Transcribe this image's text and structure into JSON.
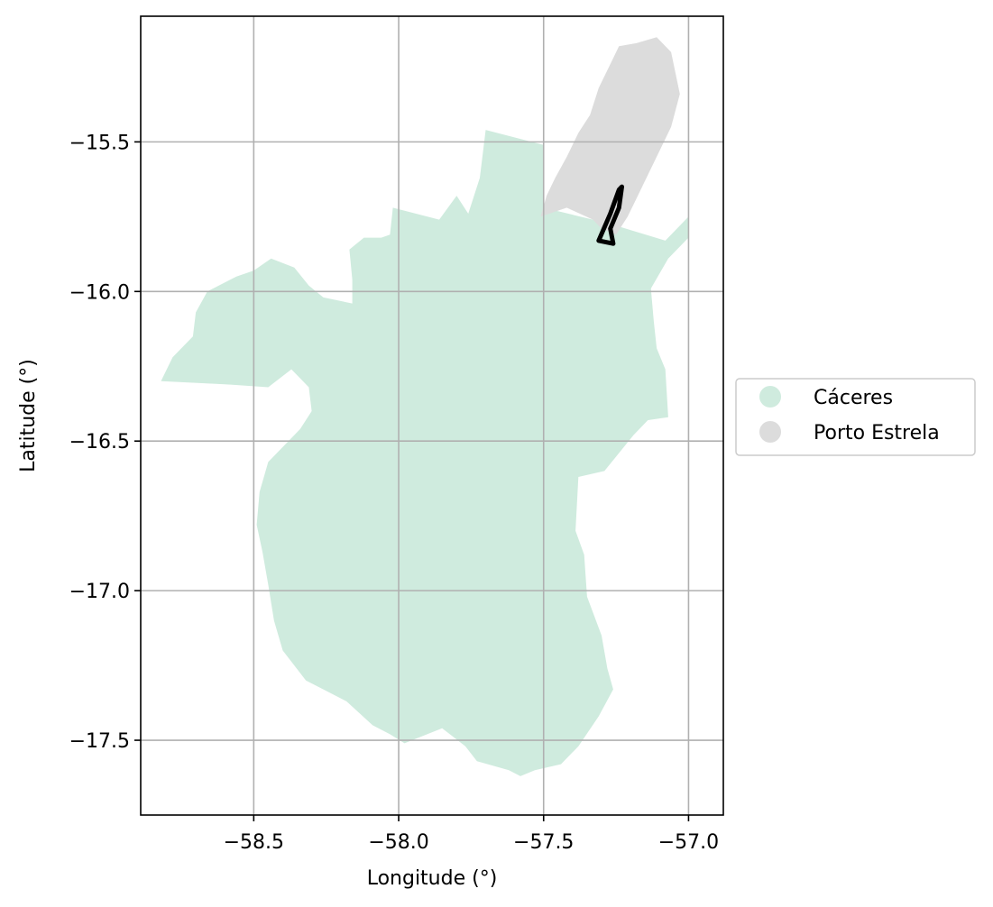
{
  "chart_data": {
    "type": "map",
    "xlabel": "Longitude (°)",
    "ylabel": "Latitude (°)",
    "xlim": [
      -58.89,
      -56.88
    ],
    "ylim": [
      -17.75,
      -15.08
    ],
    "x_ticks": [
      -58.5,
      -58.0,
      -57.5,
      -57.0
    ],
    "x_tick_labels": [
      "−58.5",
      "−58.0",
      "−57.5",
      "−57.0"
    ],
    "y_ticks": [
      -15.5,
      -16.0,
      -16.5,
      -17.0,
      -17.5
    ],
    "y_tick_labels": [
      "−15.5",
      "−16.0",
      "−16.5",
      "−17.0",
      "−17.5"
    ],
    "grid": true,
    "legend_position": "center-right, outside plot",
    "legend": [
      {
        "label": "Cáceres",
        "color": "#cfebde"
      },
      {
        "label": "Porto Estrela",
        "color": "#dcdcdc"
      }
    ],
    "regions": [
      {
        "name": "Cáceres",
        "color": "#cfebde",
        "outline_lonlat": [
          [
            -58.82,
            -16.3
          ],
          [
            -58.78,
            -16.22
          ],
          [
            -58.71,
            -16.15
          ],
          [
            -58.7,
            -16.07
          ],
          [
            -58.66,
            -16.0
          ],
          [
            -58.56,
            -15.95
          ],
          [
            -58.5,
            -15.93
          ],
          [
            -58.44,
            -15.89
          ],
          [
            -58.36,
            -15.92
          ],
          [
            -58.31,
            -15.98
          ],
          [
            -58.26,
            -16.02
          ],
          [
            -58.16,
            -16.04
          ],
          [
            -58.16,
            -15.96
          ],
          [
            -58.17,
            -15.86
          ],
          [
            -58.12,
            -15.82
          ],
          [
            -58.06,
            -15.82
          ],
          [
            -58.03,
            -15.81
          ],
          [
            -58.02,
            -15.72
          ],
          [
            -57.86,
            -15.76
          ],
          [
            -57.8,
            -15.68
          ],
          [
            -57.76,
            -15.74
          ],
          [
            -57.72,
            -15.62
          ],
          [
            -57.7,
            -15.46
          ],
          [
            -57.5,
            -15.51
          ],
          [
            -57.5,
            -15.72
          ],
          [
            -57.33,
            -15.76
          ],
          [
            -57.25,
            -15.78
          ],
          [
            -57.08,
            -15.83
          ],
          [
            -57.0,
            -15.75
          ],
          [
            -57.0,
            -15.82
          ],
          [
            -57.07,
            -15.89
          ],
          [
            -57.13,
            -15.99
          ],
          [
            -57.12,
            -16.1
          ],
          [
            -57.11,
            -16.19
          ],
          [
            -57.08,
            -16.26
          ],
          [
            -57.07,
            -16.42
          ],
          [
            -57.14,
            -16.43
          ],
          [
            -57.19,
            -16.48
          ],
          [
            -57.29,
            -16.6
          ],
          [
            -57.38,
            -16.62
          ],
          [
            -57.39,
            -16.8
          ],
          [
            -57.36,
            -16.88
          ],
          [
            -57.35,
            -17.02
          ],
          [
            -57.3,
            -17.15
          ],
          [
            -57.28,
            -17.26
          ],
          [
            -57.26,
            -17.33
          ],
          [
            -57.31,
            -17.42
          ],
          [
            -57.38,
            -17.52
          ],
          [
            -57.44,
            -17.58
          ],
          [
            -57.53,
            -17.6
          ],
          [
            -57.58,
            -17.62
          ],
          [
            -57.62,
            -17.6
          ],
          [
            -57.73,
            -17.57
          ],
          [
            -57.77,
            -17.52
          ],
          [
            -57.85,
            -17.46
          ],
          [
            -57.98,
            -17.51
          ],
          [
            -58.03,
            -17.48
          ],
          [
            -58.09,
            -17.45
          ],
          [
            -58.18,
            -17.37
          ],
          [
            -58.32,
            -17.3
          ],
          [
            -58.4,
            -17.2
          ],
          [
            -58.43,
            -17.1
          ],
          [
            -58.45,
            -16.98
          ],
          [
            -58.47,
            -16.87
          ],
          [
            -58.49,
            -16.78
          ],
          [
            -58.48,
            -16.67
          ],
          [
            -58.45,
            -16.57
          ],
          [
            -58.34,
            -16.46
          ],
          [
            -58.3,
            -16.4
          ],
          [
            -58.31,
            -16.32
          ],
          [
            -58.37,
            -16.26
          ],
          [
            -58.45,
            -16.32
          ],
          [
            -58.6,
            -16.31
          ],
          [
            -58.82,
            -16.3
          ]
        ]
      },
      {
        "name": "Porto Estrela",
        "color": "#dcdcdc",
        "outline_lonlat": [
          [
            -57.51,
            -15.75
          ],
          [
            -57.49,
            -15.68
          ],
          [
            -57.46,
            -15.62
          ],
          [
            -57.42,
            -15.55
          ],
          [
            -57.38,
            -15.47
          ],
          [
            -57.34,
            -15.41
          ],
          [
            -57.31,
            -15.32
          ],
          [
            -57.27,
            -15.24
          ],
          [
            -57.24,
            -15.18
          ],
          [
            -57.18,
            -15.17
          ],
          [
            -57.11,
            -15.15
          ],
          [
            -57.06,
            -15.2
          ],
          [
            -57.03,
            -15.34
          ],
          [
            -57.06,
            -15.45
          ],
          [
            -57.1,
            -15.53
          ],
          [
            -57.14,
            -15.61
          ],
          [
            -57.18,
            -15.69
          ],
          [
            -57.21,
            -15.75
          ],
          [
            -57.25,
            -15.81
          ],
          [
            -57.3,
            -15.79
          ],
          [
            -57.33,
            -15.76
          ],
          [
            -57.42,
            -15.72
          ],
          [
            -57.51,
            -15.75
          ]
        ]
      }
    ],
    "highlight_outline_lonlat": [
      [
        -57.31,
        -15.83
      ],
      [
        -57.27,
        -15.74
      ],
      [
        -57.24,
        -15.66
      ],
      [
        -57.23,
        -15.65
      ],
      [
        -57.24,
        -15.72
      ],
      [
        -57.27,
        -15.79
      ],
      [
        -57.26,
        -15.84
      ],
      [
        -57.31,
        -15.83
      ]
    ]
  }
}
